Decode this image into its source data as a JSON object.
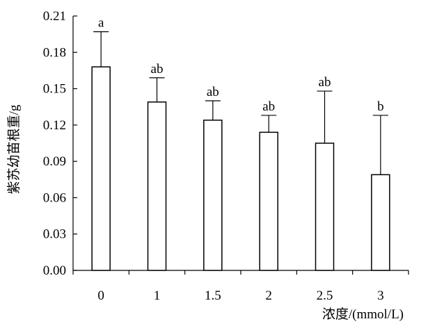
{
  "chart_data": {
    "type": "bar",
    "categories": [
      "0",
      "1",
      "1.5",
      "2",
      "2.5",
      "3"
    ],
    "values": [
      0.168,
      0.139,
      0.124,
      0.114,
      0.105,
      0.079
    ],
    "error_upper": [
      0.197,
      0.159,
      0.14,
      0.128,
      0.148,
      0.128
    ],
    "significance": [
      "a",
      "ab",
      "ab",
      "ab",
      "ab",
      "b"
    ],
    "xlabel": "浓度/(mmol/L)",
    "ylabel": "紫苏幼苗根重/g",
    "ylim": [
      0,
      0.21
    ],
    "yticks": [
      "0.00",
      "0.03",
      "0.06",
      "0.09",
      "0.12",
      "0.15",
      "0.18",
      "0.21"
    ],
    "grid": false,
    "colors": {
      "bar_fill": "#ffffff",
      "bar_stroke": "#000000",
      "axis": "#000000"
    }
  }
}
